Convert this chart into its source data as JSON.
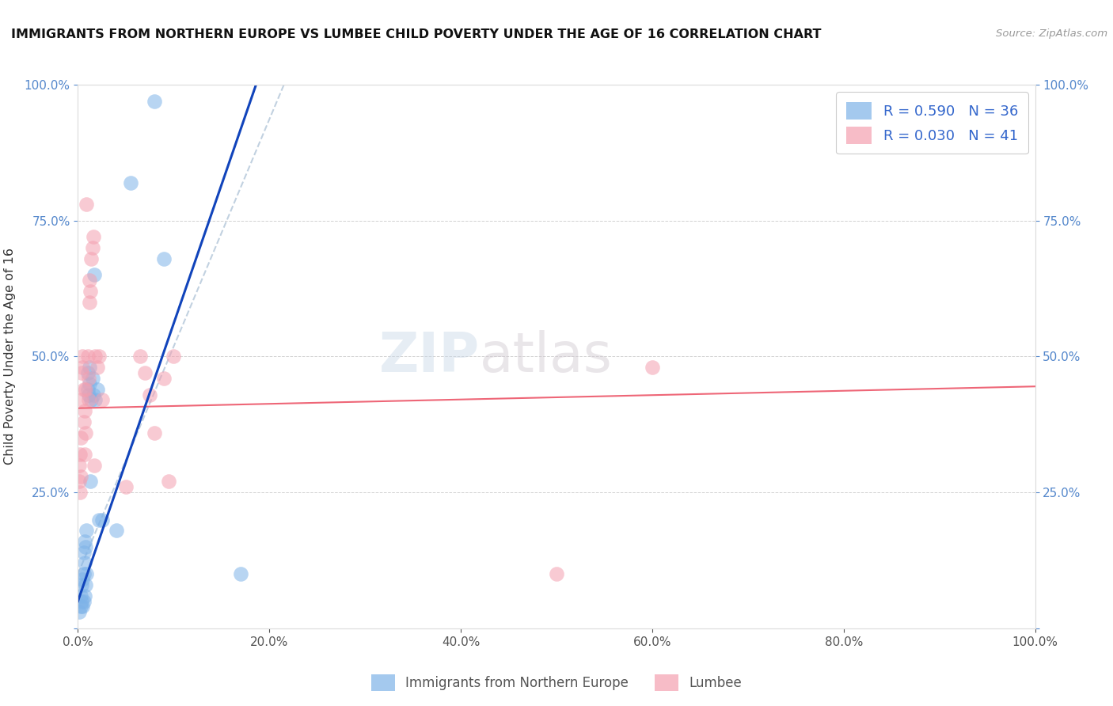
{
  "title": "IMMIGRANTS FROM NORTHERN EUROPE VS LUMBEE CHILD POVERTY UNDER THE AGE OF 16 CORRELATION CHART",
  "source": "Source: ZipAtlas.com",
  "ylabel": "Child Poverty Under the Age of 16",
  "legend_labels": [
    "Immigrants from Northern Europe",
    "Lumbee"
  ],
  "R_blue": 0.59,
  "N_blue": 36,
  "R_pink": 0.03,
  "N_pink": 41,
  "blue_color": "#7EB3E8",
  "pink_color": "#F4A0B0",
  "blue_line_color": "#1144BB",
  "pink_line_color": "#EE6677",
  "dash_color": "#BBCCDD",
  "background_color": "#ffffff",
  "blue_points_x": [
    0.001,
    0.003,
    0.003,
    0.004,
    0.004,
    0.005,
    0.005,
    0.006,
    0.006,
    0.006,
    0.007,
    0.007,
    0.007,
    0.008,
    0.008,
    0.009,
    0.009,
    0.01,
    0.01,
    0.011,
    0.012,
    0.012,
    0.013,
    0.014,
    0.015,
    0.016,
    0.017,
    0.018,
    0.02,
    0.022,
    0.025,
    0.04,
    0.055,
    0.08,
    0.09,
    0.17
  ],
  "blue_points_y": [
    0.03,
    0.04,
    0.06,
    0.05,
    0.08,
    0.04,
    0.09,
    0.05,
    0.1,
    0.14,
    0.06,
    0.12,
    0.16,
    0.08,
    0.15,
    0.1,
    0.18,
    0.44,
    0.47,
    0.43,
    0.45,
    0.48,
    0.27,
    0.42,
    0.46,
    0.43,
    0.65,
    0.42,
    0.44,
    0.2,
    0.2,
    0.18,
    0.82,
    0.97,
    0.68,
    0.1
  ],
  "pink_points_x": [
    0.001,
    0.001,
    0.002,
    0.002,
    0.003,
    0.003,
    0.004,
    0.004,
    0.005,
    0.005,
    0.006,
    0.006,
    0.007,
    0.007,
    0.008,
    0.008,
    0.009,
    0.01,
    0.011,
    0.011,
    0.012,
    0.012,
    0.013,
    0.014,
    0.015,
    0.016,
    0.017,
    0.018,
    0.02,
    0.022,
    0.025,
    0.05,
    0.065,
    0.07,
    0.075,
    0.08,
    0.09,
    0.095,
    0.1,
    0.5,
    0.6
  ],
  "pink_points_y": [
    0.27,
    0.3,
    0.25,
    0.32,
    0.28,
    0.35,
    0.42,
    0.47,
    0.48,
    0.5,
    0.44,
    0.38,
    0.32,
    0.4,
    0.36,
    0.44,
    0.78,
    0.5,
    0.46,
    0.42,
    0.6,
    0.64,
    0.62,
    0.68,
    0.7,
    0.72,
    0.3,
    0.5,
    0.48,
    0.5,
    0.42,
    0.26,
    0.5,
    0.47,
    0.43,
    0.36,
    0.46,
    0.27,
    0.5,
    0.1,
    0.48
  ],
  "xlim": [
    0.0,
    1.0
  ],
  "ylim": [
    0.0,
    1.0
  ],
  "xticks": [
    0.0,
    0.2,
    0.4,
    0.6,
    0.8,
    1.0
  ],
  "yticks": [
    0.0,
    0.25,
    0.5,
    0.75,
    1.0
  ],
  "xticklabels": [
    "0.0%",
    "20.0%",
    "40.0%",
    "60.0%",
    "80.0%",
    "100.0%"
  ],
  "yticklabels": [
    "",
    "25.0%",
    "50.0%",
    "75.0%",
    "100.0%"
  ]
}
